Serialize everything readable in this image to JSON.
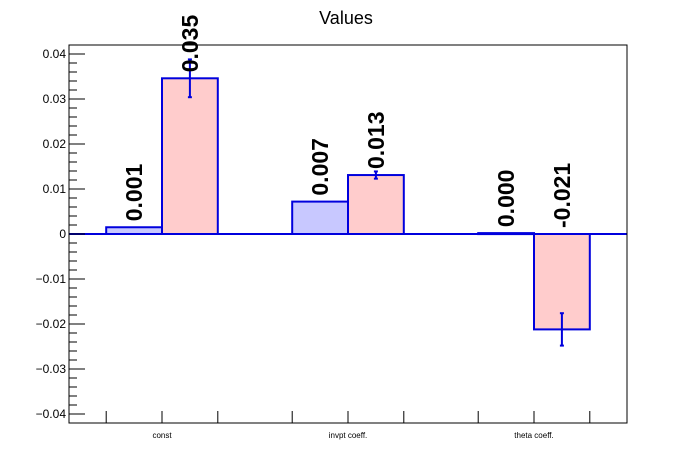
{
  "chart_data": {
    "type": "bar",
    "title": "Values",
    "xlabel": "",
    "ylabel": "",
    "ylim": [
      -0.042,
      0.042
    ],
    "yticks": [
      -0.04,
      -0.03,
      -0.02,
      -0.01,
      0,
      0.01,
      0.02,
      0.03,
      0.04
    ],
    "ytick_labels": [
      "−0.04",
      "−0.03",
      "−0.02",
      "−0.01",
      "0",
      "0.01",
      "0.02",
      "0.03",
      "0.04"
    ],
    "categories": [
      "const",
      "invpt coeff.",
      "theta coeff."
    ],
    "series": [
      {
        "values": [
          0.0015,
          0.0072,
          0.0002
        ],
        "errors": [
          0,
          0,
          0
        ],
        "labels": [
          "0.001",
          "0.007",
          "0.000"
        ],
        "fill": "#c8c8ff",
        "stroke": "#0000dd"
      },
      {
        "values": [
          0.0346,
          0.0131,
          -0.0212
        ],
        "errors": [
          0.0042,
          0.0008,
          0.0036
        ],
        "labels": [
          "0.035",
          "0.013",
          "-0.021"
        ],
        "fill": "#ffcccc",
        "stroke": "#0000dd"
      }
    ],
    "grid": false,
    "legend": "none"
  }
}
